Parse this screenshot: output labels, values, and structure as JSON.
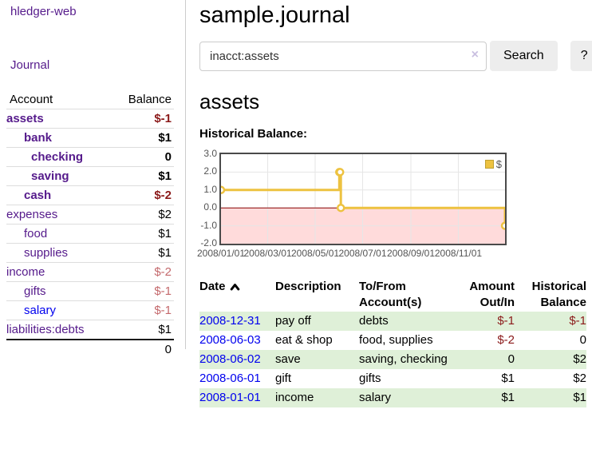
{
  "sidebar": {
    "brand": "hledger-web",
    "journal_link": "Journal",
    "accounts_table": {
      "headers": {
        "account": "Account",
        "balance": "Balance"
      },
      "rows": [
        {
          "name": "assets",
          "depth": 1,
          "bold": true,
          "balance": "$-1",
          "balance_tone": "neg-strong"
        },
        {
          "name": "bank",
          "depth": 2,
          "bold": true,
          "balance": "$1",
          "balance_tone": "pos"
        },
        {
          "name": "checking",
          "depth": 3,
          "bold": true,
          "balance": "0",
          "balance_tone": "pos"
        },
        {
          "name": "saving",
          "depth": 3,
          "bold": true,
          "balance": "$1",
          "balance_tone": "pos"
        },
        {
          "name": "cash",
          "depth": 2,
          "bold": true,
          "balance": "$-2",
          "balance_tone": "neg-strong"
        },
        {
          "name": "expenses",
          "depth": 1,
          "bold": false,
          "balance": "$2",
          "balance_tone": "pos"
        },
        {
          "name": "food",
          "depth": 2,
          "bold": false,
          "balance": "$1",
          "balance_tone": "pos"
        },
        {
          "name": "supplies",
          "depth": 2,
          "bold": false,
          "balance": "$1",
          "balance_tone": "pos"
        },
        {
          "name": "income",
          "depth": 1,
          "bold": false,
          "balance": "$-2",
          "balance_tone": "neg-soft"
        },
        {
          "name": "gifts",
          "depth": 2,
          "bold": false,
          "balance": "$-1",
          "balance_tone": "neg-soft"
        },
        {
          "name": "salary",
          "depth": 2,
          "bold": false,
          "balance": "$-1",
          "balance_tone": "neg-soft",
          "link_tone": "unvisited"
        },
        {
          "name": "liabilities:debts",
          "depth": 1,
          "bold": false,
          "balance": "$1",
          "balance_tone": "pos"
        }
      ],
      "total": "0"
    }
  },
  "main": {
    "title": "sample.journal",
    "search": {
      "value": "inacct:assets",
      "clear_label": "×",
      "search_button": "Search",
      "help_button": "?"
    },
    "account_heading": "assets",
    "chart_heading": "Historical Balance:"
  },
  "chart_data": {
    "type": "line",
    "title": "Historical Balance:",
    "x_start": "2008-01-01",
    "x_end": "2008-12-31",
    "ylim": [
      -2,
      3
    ],
    "y_ticks": [
      3.0,
      2.0,
      1.0,
      0.0,
      -1.0,
      -2.0
    ],
    "x_ticks": [
      {
        "date": "2008-01-01",
        "label": "2008/01/01"
      },
      {
        "date": "2008-03-01",
        "label": "2008/03/01"
      },
      {
        "date": "2008-05-01",
        "label": "2008/05/01"
      },
      {
        "date": "2008-07-01",
        "label": "2008/07/01"
      },
      {
        "date": "2008-09-01",
        "label": "2008/09/01"
      },
      {
        "date": "2008-11-01",
        "label": "2008/11/01"
      }
    ],
    "series": [
      {
        "name": "$",
        "color": "#edc240",
        "step": true,
        "points": [
          {
            "date": "2008-01-01",
            "value": 1
          },
          {
            "date": "2008-06-01",
            "value": 2
          },
          {
            "date": "2008-06-02",
            "value": 2
          },
          {
            "date": "2008-06-03",
            "value": 0
          },
          {
            "date": "2008-12-31",
            "value": -1
          }
        ]
      }
    ],
    "legend": {
      "label": "$",
      "position": "top-right"
    },
    "negative_region_color": "#ffdbdb",
    "zero_line_color": "#8b0000",
    "grid_color": "#e6e6e6",
    "grid": true
  },
  "register": {
    "headers": {
      "date": "Date",
      "description": "Description",
      "accounts": "To/From Account(s)",
      "amount": "Amount Out/In",
      "balance": "Historical Balance"
    },
    "sort": {
      "column": "date",
      "direction": "ascending"
    },
    "rows": [
      {
        "date": "2008-12-31",
        "description": "pay off",
        "accounts": "debts",
        "amount": "$-1",
        "amount_negative": true,
        "balance": "$-1",
        "balance_negative": true
      },
      {
        "date": "2008-06-03",
        "description": "eat & shop",
        "accounts": "food, supplies",
        "amount": "$-2",
        "amount_negative": true,
        "balance": "0",
        "balance_negative": false
      },
      {
        "date": "2008-06-02",
        "description": "save",
        "accounts": "saving, checking",
        "amount": "0",
        "amount_negative": false,
        "balance": "$2",
        "balance_negative": false
      },
      {
        "date": "2008-06-01",
        "description": "gift",
        "accounts": "gifts",
        "amount": "$1",
        "amount_negative": false,
        "balance": "$2",
        "balance_negative": false
      },
      {
        "date": "2008-01-01",
        "description": "income",
        "accounts": "salary",
        "amount": "$1",
        "amount_negative": false,
        "balance": "$1",
        "balance_negative": false
      }
    ]
  },
  "colors": {
    "link_visited": "#551a8b",
    "link_unvisited": "#0000ee",
    "negative_strong": "#8b1a1a",
    "negative_soft": "#c4696c",
    "row_stripe_green": "#dff0d8",
    "series_gold": "#edc240"
  }
}
